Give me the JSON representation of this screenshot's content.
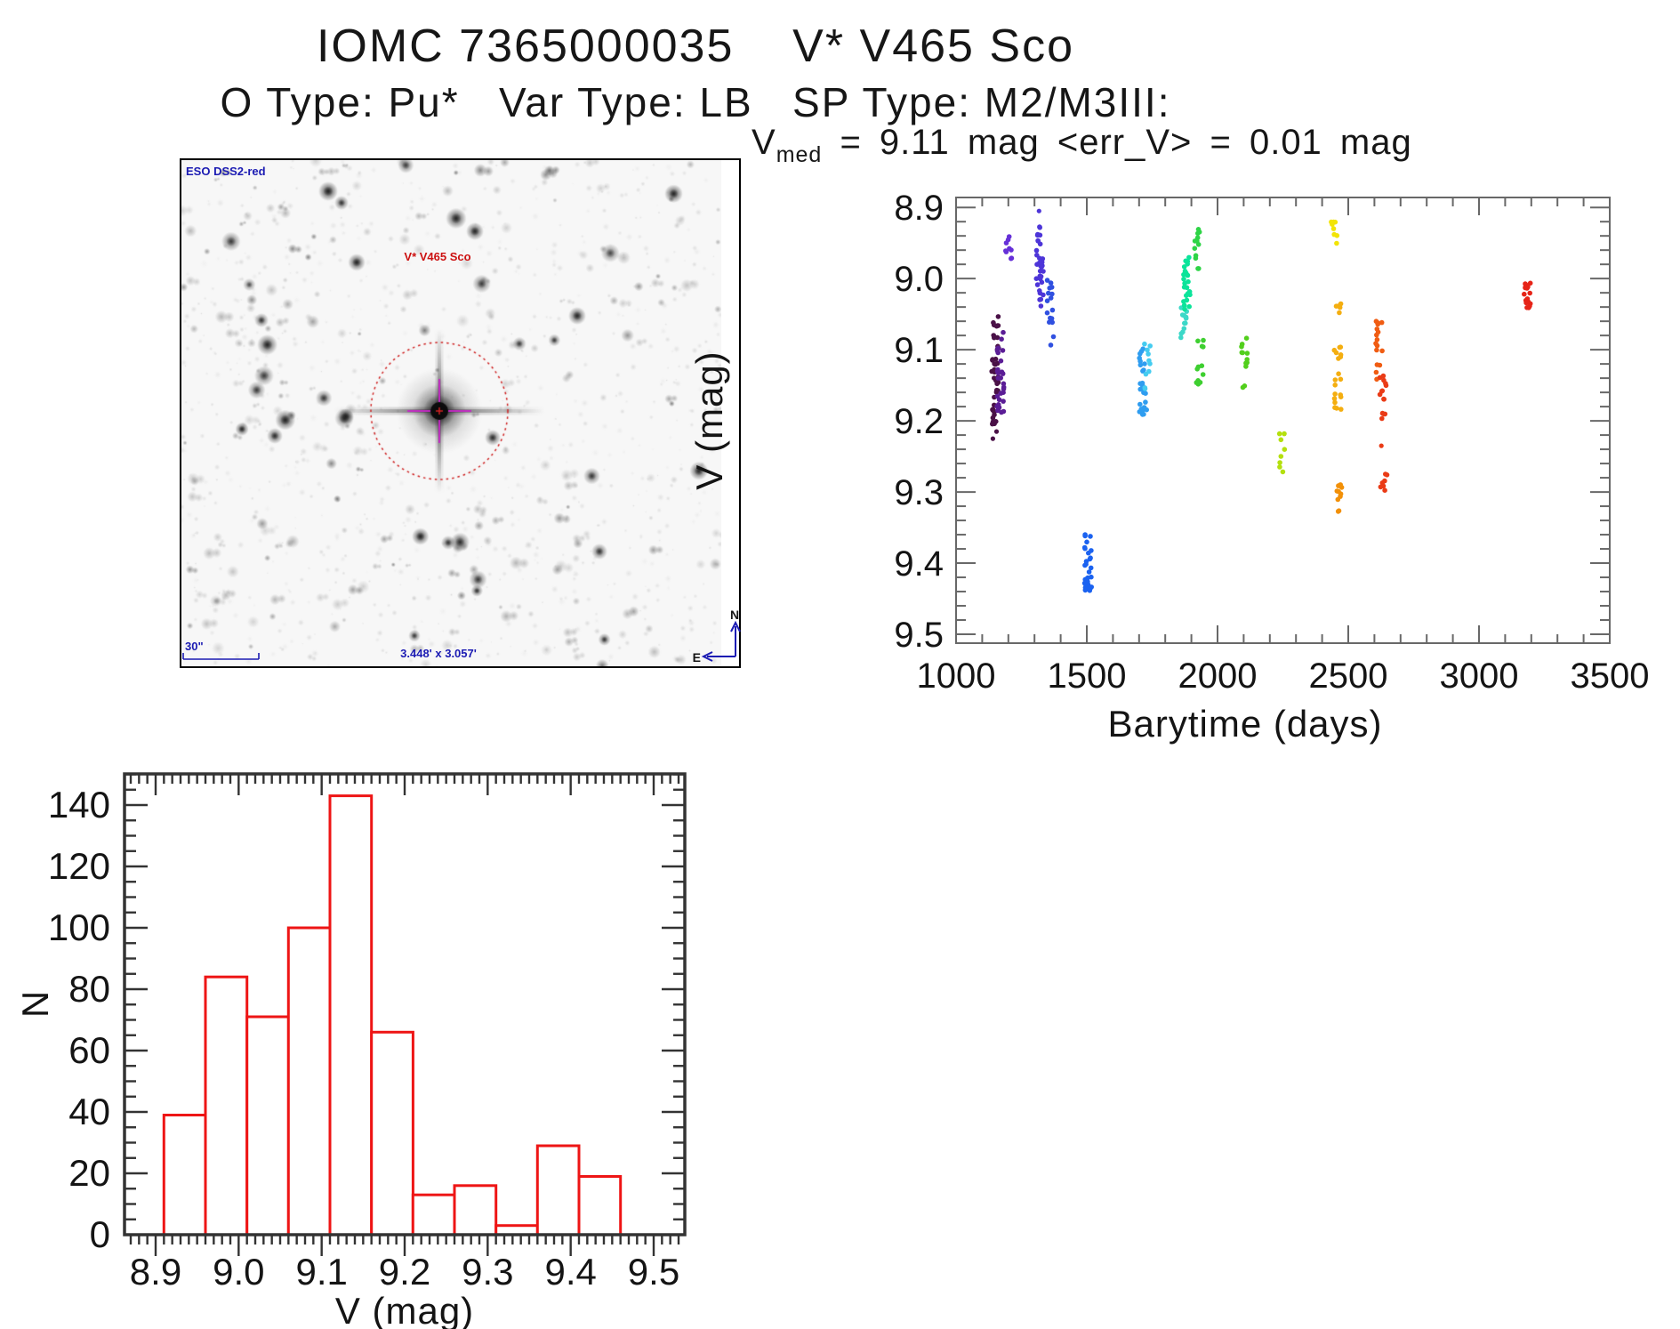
{
  "page": {
    "title": "IOMC 7365000035    V* V465 Sco",
    "subtitle": "O Type: Pu*   Var Type: LB   SP Type: M2/M3III:"
  },
  "light_curve": {
    "header": {
      "symbol": "V",
      "subscript": "med",
      "rest": " = 9.11 mag <err_V> = 0.01 mag",
      "v_med_mag": 9.11,
      "err_v_mag": 0.01
    }
  },
  "finder": {
    "survey_label": "ESO DSS2-red",
    "target_label": "V* V465 Sco",
    "scale_bar_label": "30\"",
    "field_size_label": "3.448' x 3.057'",
    "compass_north": "N",
    "compass_east": "E",
    "annotation_color": "#1b1bb3",
    "target_color": "#cc1111",
    "circle_color": "#cf2020",
    "crosshair_color": "#c428c4"
  },
  "chart_data": [
    {
      "type": "scatter",
      "title": "V_med = 9.11 mag <err_V> = 0.01 mag",
      "xlabel": "Barytime (days)",
      "ylabel": "V (mag)",
      "xlim": [
        1000,
        3500
      ],
      "ylim": [
        8.886,
        9.5125
      ],
      "y_inverted_magnitude_axis": true,
      "grid": false,
      "legend": "none",
      "x_ticks": [
        1000,
        1500,
        2000,
        2500,
        3000,
        3500
      ],
      "x_tick_labels": [
        "1000",
        "1500",
        "2000",
        "2500",
        "3000",
        "3500"
      ],
      "x_minor_step": 100,
      "y_ticks": [
        8.9,
        9.0,
        9.1,
        9.2,
        9.3,
        9.4,
        9.5
      ],
      "y_tick_labels": [
        "8.9",
        "9.0",
        "9.1",
        "9.2",
        "9.3",
        "9.4",
        "9.5"
      ],
      "y_minor_step": 0.02,
      "series": [
        {
          "t_days": 1150,
          "v_range": [
            9.055,
            9.205
          ],
          "n": 42,
          "color": "#4a1147",
          "outliers": [
            9.215,
            9.225
          ]
        },
        {
          "t_days": 1170,
          "v_range": [
            9.075,
            9.19
          ],
          "n": 30,
          "color": "#5b1d96"
        },
        {
          "t_days": 1200,
          "v_range": [
            8.93,
            8.975
          ],
          "n": 9,
          "color": "#6630d8"
        },
        {
          "t_days": 1320,
          "v_range": [
            8.925,
            9.045
          ],
          "n": 32,
          "color": "#4d35d8",
          "outliers": [
            8.905
          ]
        },
        {
          "t_days": 1362,
          "v_range": [
            9.0,
            9.1
          ],
          "n": 16,
          "color": "#3050e0"
        },
        {
          "t_days": 1505,
          "v_range": [
            9.355,
            9.44
          ],
          "n": 30,
          "color": "#1b62f0"
        },
        {
          "t_days": 1715,
          "v_range": [
            9.095,
            9.2
          ],
          "n": 26,
          "color": "#2f9df0"
        },
        {
          "t_days": 1730,
          "v_range": [
            9.09,
            9.155
          ],
          "n": 10,
          "color": "#45ccf0"
        },
        {
          "t_days": 1872,
          "v_range": [
            9.04,
            9.085
          ],
          "n": 12,
          "color": "#3cd8c8"
        },
        {
          "t_days": 1882,
          "v_range": [
            8.96,
            9.045
          ],
          "n": 26,
          "color": "#0be49a"
        },
        {
          "t_days": 1925,
          "v_range": [
            8.92,
            8.99
          ],
          "n": 12,
          "color": "#2ed446"
        },
        {
          "t_days": 1932,
          "v_range": [
            9.085,
            9.15
          ],
          "n": 13,
          "color": "#3ecf30"
        },
        {
          "t_days": 2105,
          "v_range": [
            9.08,
            9.16
          ],
          "n": 12,
          "color": "#52cf1c"
        },
        {
          "t_days": 2245,
          "v_range": [
            9.215,
            9.27
          ],
          "n": 8,
          "color": "#b4e00e"
        },
        {
          "t_days": 2448,
          "v_range": [
            8.92,
            8.96
          ],
          "n": 8,
          "color": "#f2e406"
        },
        {
          "t_days": 2460,
          "v_range": [
            9.03,
            9.185
          ],
          "n": 24,
          "color": "#f4ae10"
        },
        {
          "t_days": 2462,
          "v_range": [
            9.285,
            9.33
          ],
          "n": 10,
          "color": "#f29008"
        },
        {
          "t_days": 2618,
          "v_range": [
            9.05,
            9.145
          ],
          "n": 16,
          "color": "#f05c12"
        },
        {
          "t_days": 2632,
          "v_range": [
            9.135,
            9.2
          ],
          "n": 14,
          "color": "#ea3b16",
          "outliers": [
            9.235
          ]
        },
        {
          "t_days": 2635,
          "v_range": [
            9.27,
            9.3
          ],
          "n": 8,
          "color": "#ea3b16"
        },
        {
          "t_days": 3185,
          "v_range": [
            9.005,
            9.045
          ],
          "n": 18,
          "color": "#e62418"
        }
      ]
    },
    {
      "type": "bar",
      "title": "",
      "xlabel": "V (mag)",
      "ylabel": "N",
      "bar_color": "#ee1515",
      "bin_start": 8.91,
      "bin_width": 0.05,
      "categories": [
        "8.91-8.96",
        "8.96-9.01",
        "9.01-9.06",
        "9.06-9.11",
        "9.11-9.16",
        "9.16-9.21",
        "9.21-9.26",
        "9.26-9.31",
        "9.31-9.36",
        "9.36-9.41",
        "9.41-9.46"
      ],
      "values": [
        39,
        84,
        71,
        100,
        143,
        66,
        13,
        16,
        3,
        29,
        19
      ],
      "xlim": [
        8.8625,
        9.5375
      ],
      "ylim": [
        0,
        150
      ],
      "x_ticks": [
        8.9,
        9.0,
        9.1,
        9.2,
        9.3,
        9.4,
        9.5
      ],
      "x_tick_labels": [
        "8.9",
        "9.0",
        "9.1",
        "9.2",
        "9.3",
        "9.4",
        "9.5"
      ],
      "x_minor_step": 0.01,
      "y_ticks": [
        0,
        20,
        40,
        60,
        80,
        100,
        120,
        140
      ],
      "y_tick_labels": [
        "0",
        "20",
        "40",
        "60",
        "80",
        "100",
        "120",
        "140"
      ],
      "y_minor_step": 5,
      "grid": false,
      "legend": "none"
    }
  ]
}
